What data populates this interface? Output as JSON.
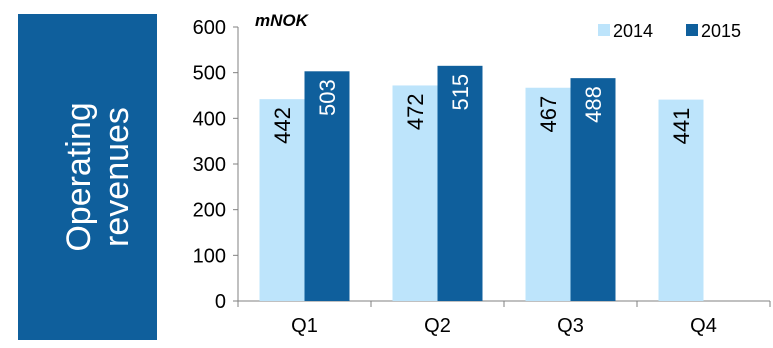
{
  "side_label": {
    "line1": "Operating",
    "line2": "revenues"
  },
  "chart_data": {
    "type": "bar",
    "unit_label": "mNOK",
    "categories": [
      "Q1",
      "Q2",
      "Q3",
      "Q4"
    ],
    "series": [
      {
        "name": "2014",
        "values": [
          442,
          472,
          467,
          441
        ],
        "color": "#bde4fb"
      },
      {
        "name": "2015",
        "values": [
          503,
          515,
          488,
          null
        ],
        "color": "#0f5f9c"
      }
    ],
    "ylim": [
      0,
      600
    ],
    "yticks": [
      0,
      100,
      200,
      300,
      400,
      500,
      600
    ],
    "grid": false,
    "legend": "top-right",
    "data_labels": "inside-rotated"
  }
}
